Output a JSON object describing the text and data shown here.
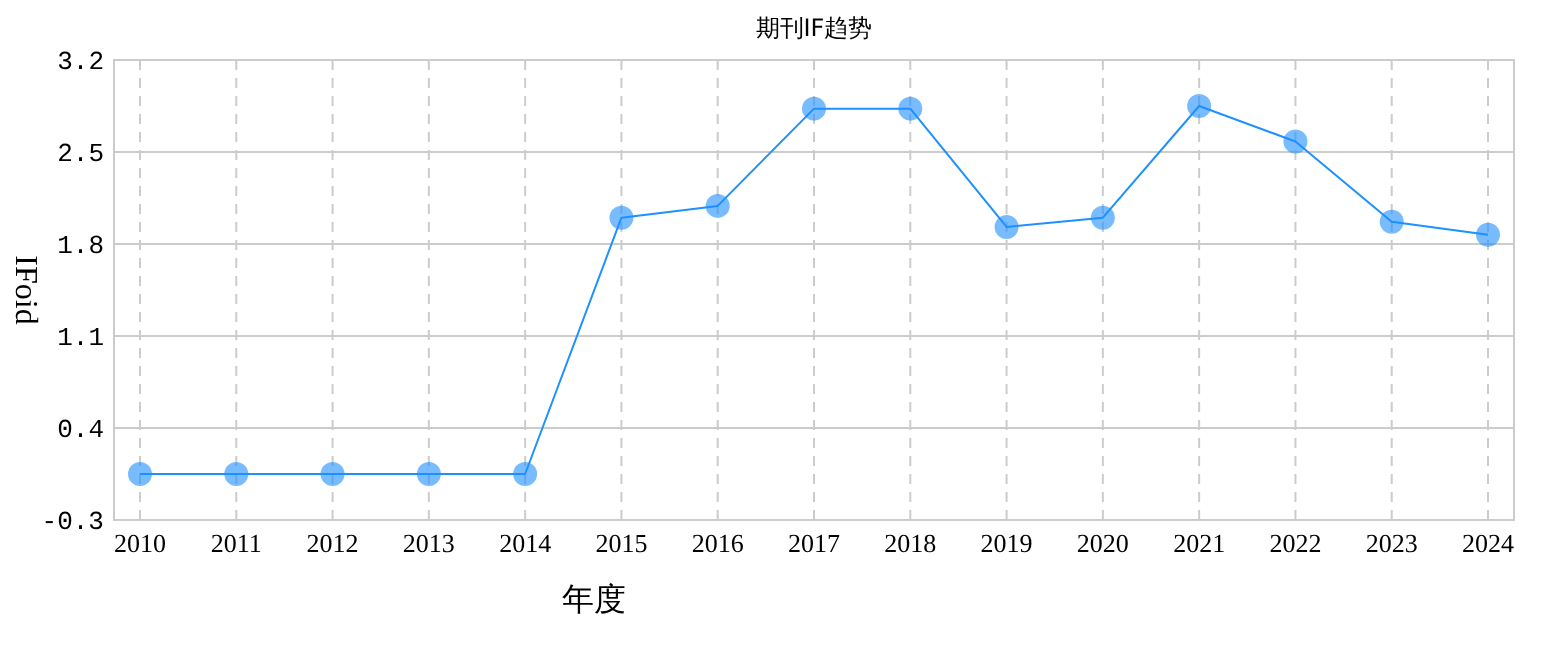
{
  "chart_data": {
    "type": "line",
    "title": "期刊IF趋势",
    "xlabel": "年度",
    "ylabel": "IFoid",
    "categories": [
      "2010",
      "2011",
      "2012",
      "2013",
      "2014",
      "2015",
      "2016",
      "2017",
      "2018",
      "2019",
      "2020",
      "2021",
      "2022",
      "2023",
      "2024"
    ],
    "series": [
      {
        "color": "#1e90ff",
        "values": [
          0.05,
          0.05,
          0.05,
          0.05,
          0.05,
          2.0,
          2.09,
          2.83,
          2.83,
          1.93,
          2.0,
          2.85,
          2.58,
          1.97,
          1.87
        ]
      }
    ],
    "ylim": [
      -0.3,
      3.2
    ],
    "yticks": [
      -0.3,
      0.4,
      1.1,
      1.8,
      2.5,
      3.2
    ],
    "grid": true,
    "marker": "circle",
    "line_style": "solid"
  }
}
